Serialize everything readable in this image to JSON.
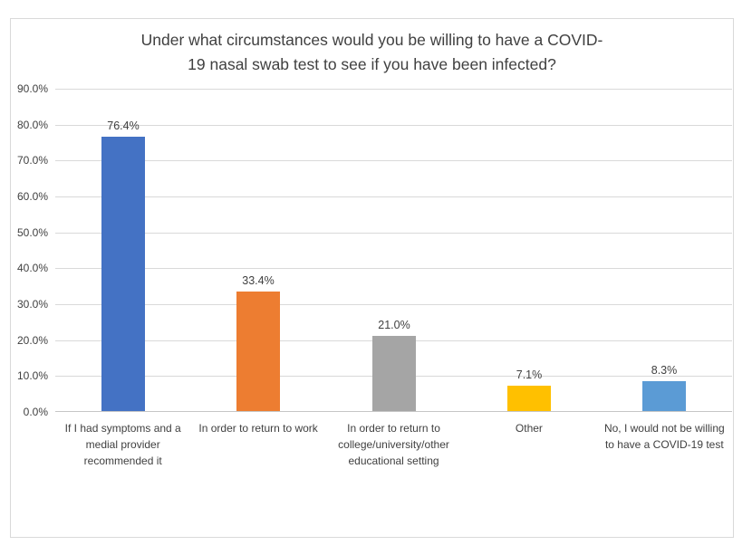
{
  "chart_data": {
    "type": "bar",
    "title": "Under what circumstances would you be willing to have a COVID-19 nasal swab test to see if you have been infected?",
    "title_lines": [
      "Under what circumstances would you be willing to have a COVID-",
      "19 nasal swab test to see if you have been infected?"
    ],
    "categories": [
      "If I had symptoms and a medial provider recommended it",
      "In order to return to work",
      "In order to return to college/university/other educational setting",
      "Other",
      "No, I would not be willing to have a COVID-19 test"
    ],
    "values": [
      76.4,
      33.4,
      21.0,
      7.1,
      8.3
    ],
    "value_labels": [
      "76.4%",
      "33.4%",
      "21.0%",
      "7.1%",
      "8.3%"
    ],
    "bar_colors": [
      "#4472C4",
      "#ED7D31",
      "#A5A5A5",
      "#FFC000",
      "#5B9BD5"
    ],
    "xlabel": "",
    "ylabel": "",
    "ylim": [
      0,
      90
    ],
    "ytick_step": 10,
    "ytick_labels": [
      "0.0%",
      "10.0%",
      "20.0%",
      "30.0%",
      "40.0%",
      "50.0%",
      "60.0%",
      "70.0%",
      "80.0%",
      "90.0%"
    ],
    "grid": true,
    "legend": "none",
    "gridline_color": "#D9D9D9",
    "axis_line_color": "#C6C6C6",
    "frame_border_color": "#D9D9D9",
    "text_color": "#404040",
    "background_color": "#FFFFFF"
  }
}
